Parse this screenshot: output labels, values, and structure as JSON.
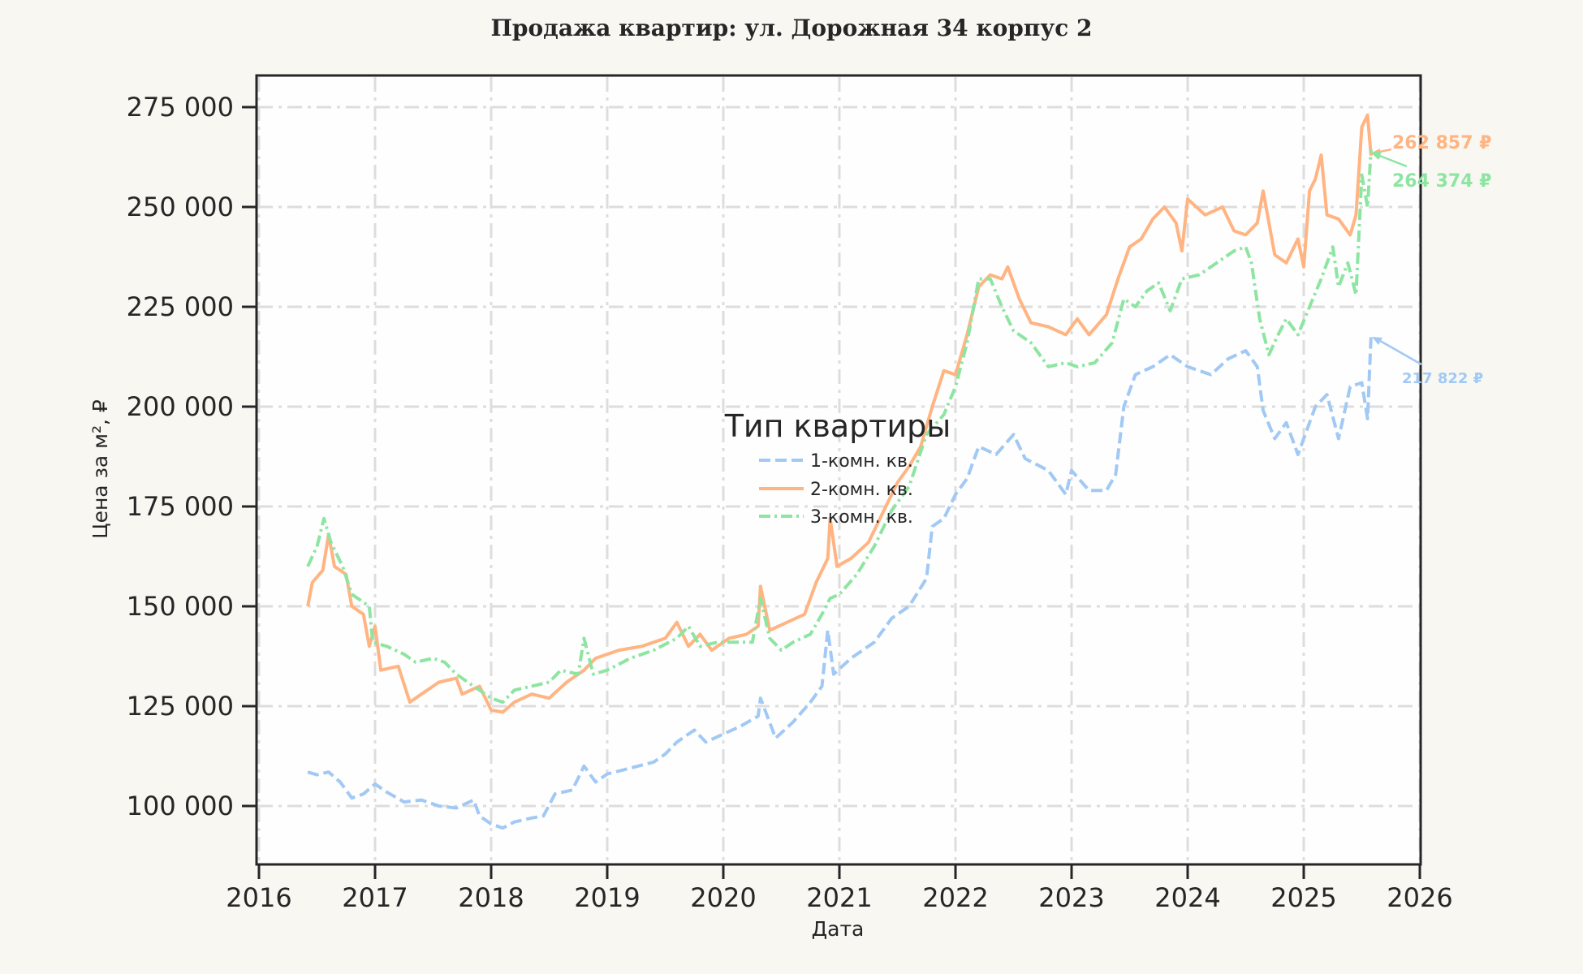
{
  "chart_data": {
    "type": "line",
    "title": "Продажа квартир: ул. Дорожная 34 корпус 2",
    "xlabel": "Дата",
    "ylabel": "Цена за м², ₽",
    "xlim": [
      2016,
      2026
    ],
    "ylim": [
      85000,
      282000
    ],
    "x_ticks": [
      "2016",
      "2017",
      "2018",
      "2019",
      "2020",
      "2021",
      "2022",
      "2023",
      "2024",
      "2025",
      "2026"
    ],
    "y_ticks": [
      "100 000",
      "125 000",
      "150 000",
      "175 000",
      "200 000",
      "225 000",
      "250 000",
      "275 000"
    ],
    "y_tick_values": [
      100000,
      125000,
      150000,
      175000,
      200000,
      225000,
      250000,
      275000
    ],
    "grid": true,
    "legend": {
      "title": "Тип квартиры",
      "position": "center"
    },
    "series": [
      {
        "name": "1-комн. кв.",
        "color": "#a1c9f4",
        "style": "dashed",
        "points": [
          [
            2016.42,
            108500
          ],
          [
            2016.5,
            107800
          ],
          [
            2016.6,
            108500
          ],
          [
            2016.7,
            106000
          ],
          [
            2016.8,
            102000
          ],
          [
            2016.9,
            103000
          ],
          [
            2017.0,
            105500
          ],
          [
            2017.1,
            103500
          ],
          [
            2017.25,
            101000
          ],
          [
            2017.4,
            101500
          ],
          [
            2017.55,
            100000
          ],
          [
            2017.7,
            99500
          ],
          [
            2017.85,
            101500
          ],
          [
            2017.9,
            97500
          ],
          [
            2018.0,
            95500
          ],
          [
            2018.1,
            94500
          ],
          [
            2018.2,
            96000
          ],
          [
            2018.35,
            97000
          ],
          [
            2018.45,
            97500
          ],
          [
            2018.55,
            103000
          ],
          [
            2018.7,
            104000
          ],
          [
            2018.8,
            110000
          ],
          [
            2018.9,
            106000
          ],
          [
            2019.0,
            108000
          ],
          [
            2019.2,
            109500
          ],
          [
            2019.4,
            111000
          ],
          [
            2019.5,
            113000
          ],
          [
            2019.6,
            116000
          ],
          [
            2019.75,
            119000
          ],
          [
            2019.85,
            116000
          ],
          [
            2020.0,
            118000
          ],
          [
            2020.15,
            120000
          ],
          [
            2020.3,
            122500
          ],
          [
            2020.32,
            127000
          ],
          [
            2020.45,
            117000
          ],
          [
            2020.6,
            121000
          ],
          [
            2020.75,
            126000
          ],
          [
            2020.85,
            130000
          ],
          [
            2020.9,
            144000
          ],
          [
            2020.95,
            133000
          ],
          [
            2021.1,
            137000
          ],
          [
            2021.3,
            141000
          ],
          [
            2021.45,
            147000
          ],
          [
            2021.6,
            150000
          ],
          [
            2021.75,
            157000
          ],
          [
            2021.8,
            170000
          ],
          [
            2021.9,
            172000
          ],
          [
            2022.0,
            178000
          ],
          [
            2022.1,
            182000
          ],
          [
            2022.2,
            190000
          ],
          [
            2022.35,
            188000
          ],
          [
            2022.5,
            193000
          ],
          [
            2022.6,
            187000
          ],
          [
            2022.8,
            184000
          ],
          [
            2022.95,
            178000
          ],
          [
            2023.0,
            184000
          ],
          [
            2023.15,
            179000
          ],
          [
            2023.3,
            179000
          ],
          [
            2023.38,
            183000
          ],
          [
            2023.45,
            200000
          ],
          [
            2023.55,
            208000
          ],
          [
            2023.7,
            210000
          ],
          [
            2023.85,
            213000
          ],
          [
            2024.0,
            210000
          ],
          [
            2024.2,
            208000
          ],
          [
            2024.35,
            212000
          ],
          [
            2024.5,
            214000
          ],
          [
            2024.6,
            210000
          ],
          [
            2024.65,
            199000
          ],
          [
            2024.75,
            192000
          ],
          [
            2024.85,
            196000
          ],
          [
            2024.95,
            188000
          ],
          [
            2025.1,
            200000
          ],
          [
            2025.2,
            203000
          ],
          [
            2025.3,
            192000
          ],
          [
            2025.4,
            205000
          ],
          [
            2025.5,
            206000
          ],
          [
            2025.55,
            197000
          ],
          [
            2025.58,
            217822
          ]
        ]
      },
      {
        "name": "2-комн. кв.",
        "color": "#ffb482",
        "style": "solid",
        "points": [
          [
            2016.42,
            150000
          ],
          [
            2016.46,
            156000
          ],
          [
            2016.55,
            159000
          ],
          [
            2016.6,
            168000
          ],
          [
            2016.65,
            160000
          ],
          [
            2016.75,
            158000
          ],
          [
            2016.8,
            150000
          ],
          [
            2016.9,
            148000
          ],
          [
            2016.95,
            140000
          ],
          [
            2017.0,
            145000
          ],
          [
            2017.05,
            134000
          ],
          [
            2017.2,
            135000
          ],
          [
            2017.3,
            126000
          ],
          [
            2017.4,
            128000
          ],
          [
            2017.55,
            131000
          ],
          [
            2017.7,
            132000
          ],
          [
            2017.75,
            128000
          ],
          [
            2017.9,
            130000
          ],
          [
            2018.0,
            124000
          ],
          [
            2018.1,
            123500
          ],
          [
            2018.2,
            126000
          ],
          [
            2018.35,
            128000
          ],
          [
            2018.5,
            127000
          ],
          [
            2018.65,
            131000
          ],
          [
            2018.8,
            134000
          ],
          [
            2018.9,
            137000
          ],
          [
            2019.1,
            139000
          ],
          [
            2019.3,
            140000
          ],
          [
            2019.5,
            142000
          ],
          [
            2019.6,
            146000
          ],
          [
            2019.7,
            140000
          ],
          [
            2019.8,
            143000
          ],
          [
            2019.9,
            139000
          ],
          [
            2020.05,
            142000
          ],
          [
            2020.2,
            143000
          ],
          [
            2020.3,
            145000
          ],
          [
            2020.32,
            155000
          ],
          [
            2020.4,
            144000
          ],
          [
            2020.55,
            146000
          ],
          [
            2020.7,
            148000
          ],
          [
            2020.8,
            156000
          ],
          [
            2020.9,
            162000
          ],
          [
            2020.92,
            172000
          ],
          [
            2020.98,
            160000
          ],
          [
            2021.1,
            162000
          ],
          [
            2021.25,
            166000
          ],
          [
            2021.4,
            175000
          ],
          [
            2021.5,
            181000
          ],
          [
            2021.6,
            185000
          ],
          [
            2021.7,
            190000
          ],
          [
            2021.8,
            200000
          ],
          [
            2021.9,
            209000
          ],
          [
            2022.0,
            208000
          ],
          [
            2022.1,
            218000
          ],
          [
            2022.2,
            230000
          ],
          [
            2022.3,
            233000
          ],
          [
            2022.4,
            232000
          ],
          [
            2022.45,
            235000
          ],
          [
            2022.55,
            227000
          ],
          [
            2022.65,
            221000
          ],
          [
            2022.8,
            220000
          ],
          [
            2022.95,
            218000
          ],
          [
            2023.05,
            222000
          ],
          [
            2023.15,
            218000
          ],
          [
            2023.3,
            223000
          ],
          [
            2023.4,
            232000
          ],
          [
            2023.5,
            240000
          ],
          [
            2023.6,
            242000
          ],
          [
            2023.7,
            247000
          ],
          [
            2023.8,
            250000
          ],
          [
            2023.9,
            246000
          ],
          [
            2023.95,
            239000
          ],
          [
            2024.0,
            252000
          ],
          [
            2024.15,
            248000
          ],
          [
            2024.3,
            250000
          ],
          [
            2024.4,
            244000
          ],
          [
            2024.5,
            243000
          ],
          [
            2024.6,
            246000
          ],
          [
            2024.65,
            254000
          ],
          [
            2024.75,
            238000
          ],
          [
            2024.85,
            236000
          ],
          [
            2024.95,
            242000
          ],
          [
            2025.0,
            235000
          ],
          [
            2025.05,
            254000
          ],
          [
            2025.1,
            257000
          ],
          [
            2025.15,
            263000
          ],
          [
            2025.2,
            248000
          ],
          [
            2025.3,
            247000
          ],
          [
            2025.4,
            243000
          ],
          [
            2025.45,
            248000
          ],
          [
            2025.5,
            270000
          ],
          [
            2025.55,
            273000
          ],
          [
            2025.58,
            262857
          ]
        ]
      },
      {
        "name": "3-комн. кв.",
        "color": "#8de5a1",
        "style": "dashdot",
        "points": [
          [
            2016.42,
            160000
          ],
          [
            2016.5,
            165000
          ],
          [
            2016.56,
            172000
          ],
          [
            2016.62,
            166000
          ],
          [
            2016.72,
            160000
          ],
          [
            2016.8,
            153000
          ],
          [
            2016.95,
            150000
          ],
          [
            2016.98,
            141000
          ],
          [
            2017.1,
            140000
          ],
          [
            2017.25,
            138000
          ],
          [
            2017.35,
            136000
          ],
          [
            2017.5,
            137000
          ],
          [
            2017.6,
            136000
          ],
          [
            2017.7,
            133000
          ],
          [
            2017.85,
            130000
          ],
          [
            2018.0,
            127000
          ],
          [
            2018.1,
            126000
          ],
          [
            2018.2,
            129000
          ],
          [
            2018.35,
            130000
          ],
          [
            2018.5,
            131000
          ],
          [
            2018.6,
            134000
          ],
          [
            2018.75,
            133000
          ],
          [
            2018.8,
            142000
          ],
          [
            2018.88,
            133000
          ],
          [
            2019.0,
            134000
          ],
          [
            2019.2,
            137000
          ],
          [
            2019.4,
            139000
          ],
          [
            2019.6,
            142000
          ],
          [
            2019.7,
            145000
          ],
          [
            2019.8,
            140000
          ],
          [
            2019.95,
            141000
          ],
          [
            2020.1,
            141000
          ],
          [
            2020.25,
            141000
          ],
          [
            2020.32,
            152000
          ],
          [
            2020.4,
            142000
          ],
          [
            2020.5,
            139000
          ],
          [
            2020.6,
            141000
          ],
          [
            2020.75,
            143000
          ],
          [
            2020.85,
            148000
          ],
          [
            2020.92,
            152000
          ],
          [
            2021.0,
            153000
          ],
          [
            2021.15,
            158000
          ],
          [
            2021.3,
            165000
          ],
          [
            2021.45,
            174000
          ],
          [
            2021.6,
            180000
          ],
          [
            2021.75,
            193000
          ],
          [
            2021.9,
            198000
          ],
          [
            2022.0,
            205000
          ],
          [
            2022.1,
            216000
          ],
          [
            2022.2,
            232000
          ],
          [
            2022.3,
            232000
          ],
          [
            2022.4,
            225000
          ],
          [
            2022.5,
            219000
          ],
          [
            2022.65,
            216000
          ],
          [
            2022.8,
            210000
          ],
          [
            2022.95,
            211000
          ],
          [
            2023.05,
            210000
          ],
          [
            2023.2,
            211000
          ],
          [
            2023.35,
            216000
          ],
          [
            2023.45,
            227000
          ],
          [
            2023.55,
            225000
          ],
          [
            2023.65,
            229000
          ],
          [
            2023.75,
            231000
          ],
          [
            2023.85,
            224000
          ],
          [
            2023.95,
            232000
          ],
          [
            2024.1,
            233000
          ],
          [
            2024.25,
            236000
          ],
          [
            2024.4,
            239000
          ],
          [
            2024.5,
            240000
          ],
          [
            2024.55,
            236000
          ],
          [
            2024.62,
            222000
          ],
          [
            2024.7,
            213000
          ],
          [
            2024.78,
            218000
          ],
          [
            2024.85,
            222000
          ],
          [
            2024.95,
            218000
          ],
          [
            2025.05,
            225000
          ],
          [
            2025.15,
            232000
          ],
          [
            2025.25,
            240000
          ],
          [
            2025.3,
            230000
          ],
          [
            2025.38,
            236000
          ],
          [
            2025.45,
            228000
          ],
          [
            2025.5,
            258000
          ],
          [
            2025.55,
            250000
          ],
          [
            2025.58,
            264374
          ]
        ]
      }
    ],
    "annotations": [
      {
        "text": "262 857 ₽",
        "series": "2-комн. кв.",
        "value": 262857,
        "color": "#ffb482"
      },
      {
        "text": "264 374 ₽",
        "series": "3-комн. кв.",
        "value": 264374,
        "color": "#8de5a1"
      },
      {
        "text": "217 822 ₽",
        "series": "1-комн. кв.",
        "value": 217822,
        "color": "#a1c9f4"
      }
    ]
  }
}
